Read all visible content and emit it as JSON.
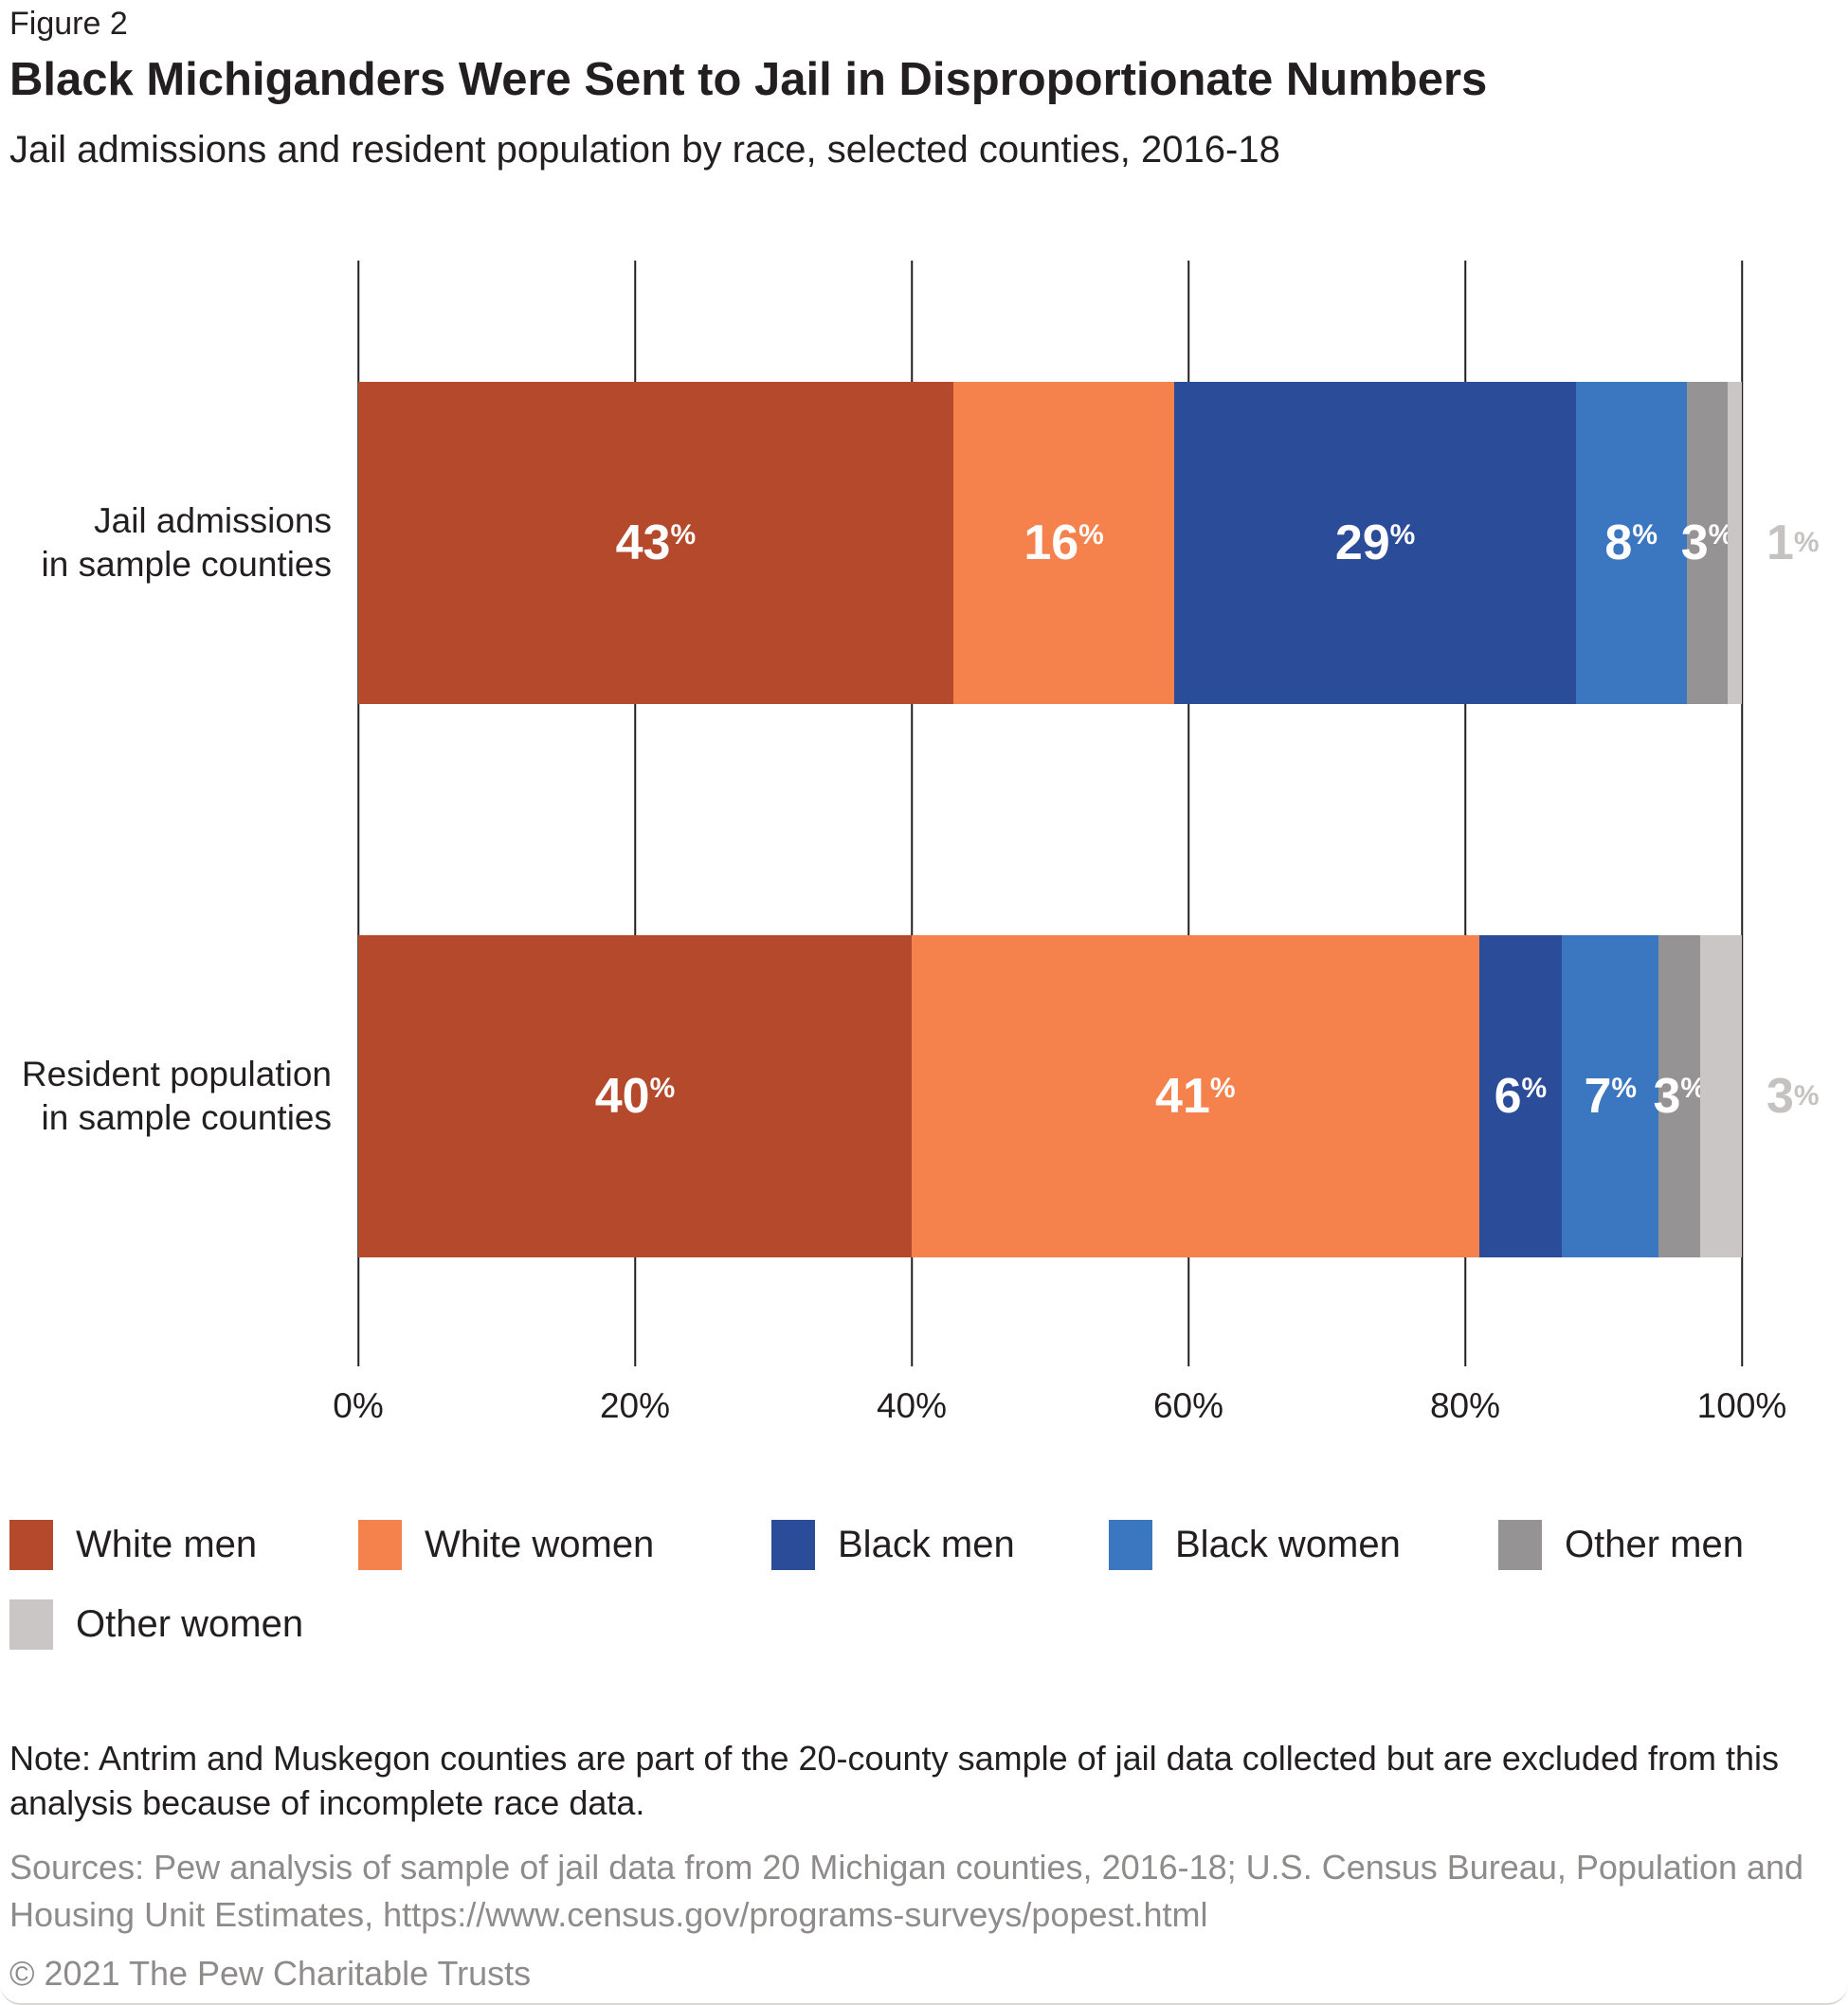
{
  "header": {
    "figure_label": "Figure 2",
    "title": "Black Michiganders Were Sent to Jail in Disproportionate Numbers",
    "subtitle": "Jail admissions and resident population by race, selected counties, 2016-18"
  },
  "chart_data": {
    "type": "bar",
    "orientation": "horizontal",
    "stacked": true,
    "grid": true,
    "legend_position": "bottom",
    "xlim": [
      0,
      100
    ],
    "x_ticks": [
      "0%",
      "20%",
      "40%",
      "60%",
      "80%",
      "100%"
    ],
    "value_suffix": "%",
    "categories": [
      {
        "line1": "Jail admissions",
        "line2": "in sample counties"
      },
      {
        "line1": "Resident population",
        "line2": "in sample counties"
      }
    ],
    "series": [
      {
        "name": "White men",
        "color": "#B5492B",
        "values": [
          43,
          40
        ]
      },
      {
        "name": "White women",
        "color": "#F5824D",
        "values": [
          16,
          41
        ]
      },
      {
        "name": "Black men",
        "color": "#2B4D99",
        "values": [
          29,
          6
        ]
      },
      {
        "name": "Black women",
        "color": "#3B76C1",
        "values": [
          8,
          7
        ]
      },
      {
        "name": "Other men",
        "color": "#969394",
        "values": [
          3,
          3
        ]
      },
      {
        "name": "Other women",
        "color": "#C9C6C5",
        "values": [
          1,
          3
        ],
        "label_outside": true
      }
    ],
    "outside_label_color": "#C5C2C1"
  },
  "footer": {
    "note": "Note: Antrim and Muskegon counties are part of the 20-county sample of jail data collected but are excluded from this analysis because of incomplete race data.",
    "sources": "Sources: Pew analysis of sample of jail data from 20 Michigan counties, 2016-18; U.S. Census Bureau, Population and Housing Unit Estimates, https://www.census.gov/programs-surveys/popest.html",
    "copyright": "© 2021 The Pew Charitable Trusts"
  }
}
